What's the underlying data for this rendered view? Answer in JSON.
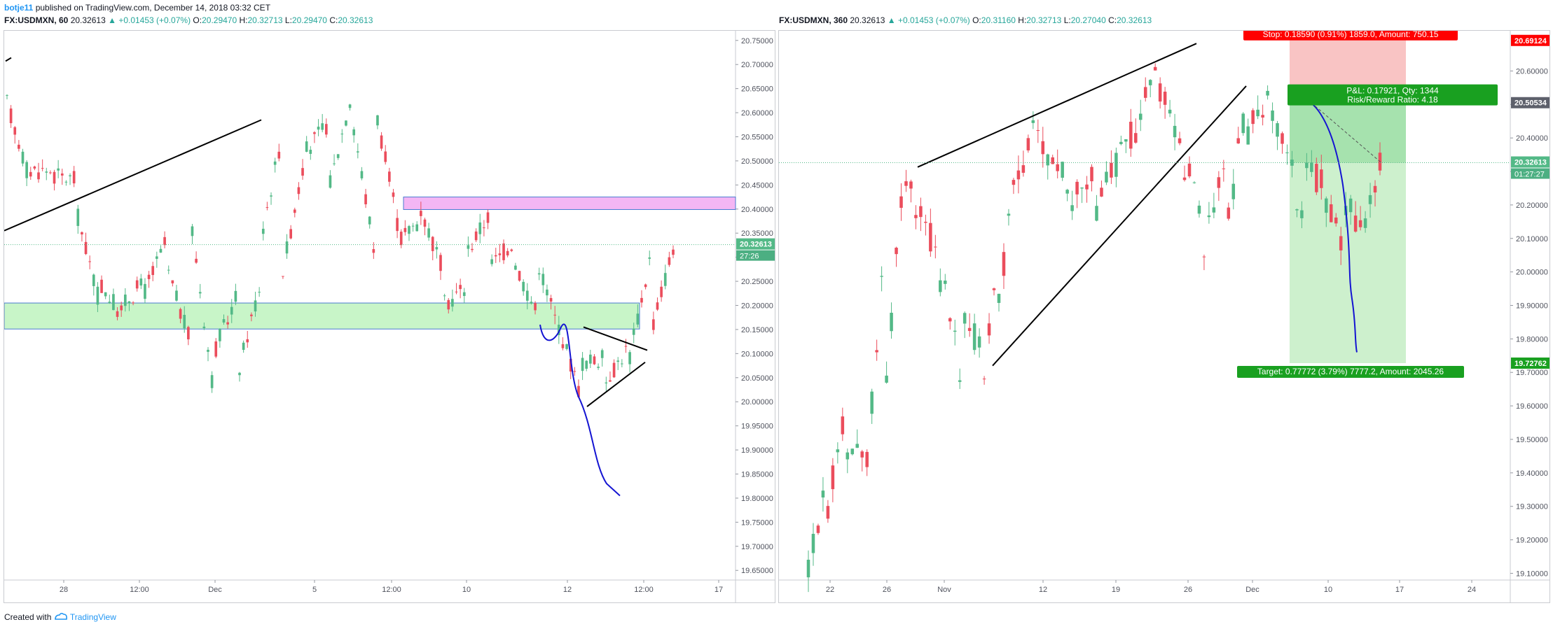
{
  "publisher": {
    "author": "botje11",
    "text": "published on TradingView.com, December 14, 2018 03:32 CET"
  },
  "footer": {
    "created_with": "Created with",
    "brand": "TradingView"
  },
  "colors": {
    "up": "#53b987",
    "down": "#eb4d5c",
    "zone_green": "#c8f5c8",
    "zone_pink": "#f4b6f4",
    "drawing_blue": "#1414d2",
    "stop_red": "#ff0000",
    "target_green": "#19a020"
  },
  "left_chart": {
    "legend": {
      "symbol": "FX:USDMXN, 60",
      "last": "20.32613",
      "change": "▲ +0.01453 (+0.07%)",
      "o_label": "O:",
      "o": "20.29470",
      "h_label": "H:",
      "h": "20.32713",
      "l_label": "L:",
      "l": "20.29470",
      "c_label": "C:",
      "c": "20.32613"
    },
    "price_tag": "20.32613",
    "time_tag": "27:26",
    "y_ticks": [
      "20.75000",
      "20.70000",
      "20.65000",
      "20.60000",
      "20.55000",
      "20.50000",
      "20.45000",
      "20.40000",
      "20.35000",
      "20.30000",
      "20.25000",
      "20.20000",
      "20.15000",
      "20.10000",
      "20.05000",
      "20.00000",
      "19.95000",
      "19.90000",
      "19.85000",
      "19.80000",
      "19.75000",
      "19.70000",
      "19.65000"
    ],
    "x_ticks": [
      "28",
      "12:00",
      "Dec",
      "5",
      "12:00",
      "10",
      "12",
      "12:00",
      "17"
    ]
  },
  "right_chart": {
    "legend": {
      "symbol": "FX:USDMXN, 360",
      "last": "20.32613",
      "change": "▲ +0.01453 (+0.07%)",
      "o_label": "O:",
      "o": "20.31160",
      "h_label": "H:",
      "h": "20.32713",
      "l_label": "L:",
      "l": "20.27040",
      "c_label": "C:",
      "c": "20.32613"
    },
    "price_tag": "20.32613",
    "time_tag": "01:27:27",
    "stop_tag": "20.69124",
    "entry_tag": "20.50534",
    "target_tag": "19.72762",
    "stop_label": "Stop: 0.18590 (0.91%) 1859.0, Amount: 750.15",
    "pl_label": "P&L: 0.17921, Qty: 1344",
    "rr_label": "Risk/Reward Ratio: 4.18",
    "target_label": "Target: 0.77772 (3.79%) 7777.2, Amount: 2045.26",
    "y_ticks": [
      "20.60000",
      "20.50000",
      "20.40000",
      "20.30000",
      "20.20000",
      "20.10000",
      "20.00000",
      "19.90000",
      "19.80000",
      "19.70000",
      "19.60000",
      "19.50000",
      "19.40000",
      "19.30000",
      "19.20000",
      "19.10000"
    ],
    "x_ticks": [
      "22",
      "26",
      "Nov",
      "12",
      "19",
      "26",
      "Dec",
      "10",
      "17",
      "24"
    ]
  },
  "chart_data": [
    {
      "type": "candlestick",
      "symbol": "FX:USDMXN",
      "interval": "60",
      "ylim": [
        19.63,
        20.77
      ],
      "x_ticks": [
        "28",
        "12:00",
        "Dec",
        "5",
        "12:00",
        "10",
        "12",
        "12:00",
        "17"
      ],
      "anchors": [
        [
          20.62,
          20.63
        ],
        [
          20.48,
          20.46
        ],
        [
          20.47,
          20.48
        ],
        [
          20.4,
          20.46
        ],
        [
          20.25,
          20.21
        ],
        [
          20.2,
          20.18
        ],
        [
          20.23,
          20.25
        ],
        [
          20.27,
          20.34
        ],
        [
          20.38,
          20.12
        ],
        [
          20.1,
          20.02
        ],
        [
          20.05,
          20.22
        ],
        [
          20.33,
          20.24
        ],
        [
          20.27,
          20.56
        ],
        [
          20.52,
          20.52
        ],
        [
          20.44,
          20.58
        ],
        [
          20.6,
          20.64
        ],
        [
          20.62,
          20.31
        ],
        [
          20.33,
          20.37
        ],
        [
          20.4,
          20.38
        ],
        [
          20.2,
          20.27
        ],
        [
          20.31,
          20.24
        ],
        [
          20.28,
          20.39
        ],
        [
          20.3,
          20.33
        ],
        [
          20.31,
          20.19
        ],
        [
          20.16,
          20.15
        ],
        [
          20.08,
          20.01
        ],
        [
          20.04,
          20.09
        ],
        [
          20.07,
          20.11
        ],
        [
          20.14,
          20.3
        ],
        [
          20.33,
          20.32
        ]
      ],
      "last": {
        "close": 20.32613
      }
    },
    {
      "type": "candlestick",
      "symbol": "FX:USDMXN",
      "interval": "360",
      "ylim": [
        19.08,
        20.72
      ],
      "x_ticks": [
        "22",
        "26",
        "Nov",
        "12",
        "19",
        "26",
        "Dec",
        "10",
        "17",
        "24"
      ],
      "anchors": [
        [
          19.1,
          19.16
        ],
        [
          19.3,
          19.42
        ],
        [
          19.48,
          19.62
        ],
        [
          19.38,
          19.45
        ],
        [
          19.6,
          20.1
        ],
        [
          20.28,
          20.3
        ],
        [
          20.22,
          20.14
        ],
        [
          20.04,
          19.94
        ],
        [
          19.86,
          19.68
        ],
        [
          19.6,
          19.78
        ],
        [
          19.92,
          20.06
        ],
        [
          20.26,
          20.36
        ],
        [
          20.42,
          20.46
        ],
        [
          20.34,
          20.31
        ],
        [
          20.27,
          20.19
        ],
        [
          20.16,
          20.27
        ],
        [
          20.3,
          20.32
        ],
        [
          20.37,
          20.42
        ],
        [
          20.61,
          20.58
        ],
        [
          20.5,
          20.46
        ],
        [
          20.31,
          20.23
        ],
        [
          20.15,
          20.02
        ],
        [
          20.14,
          20.32
        ],
        [
          20.42,
          20.52
        ],
        [
          20.56,
          20.48
        ],
        [
          20.42,
          20.36
        ],
        [
          20.3,
          20.12
        ],
        [
          20.22,
          20.27
        ],
        [
          20.2,
          20.08
        ],
        [
          20.1,
          20.15
        ],
        [
          20.21,
          20.32
        ]
      ],
      "position": {
        "side": "short",
        "entry": 20.50534,
        "stop": 20.69124,
        "target": 19.72762
      },
      "last": {
        "close": 20.32613
      }
    }
  ]
}
